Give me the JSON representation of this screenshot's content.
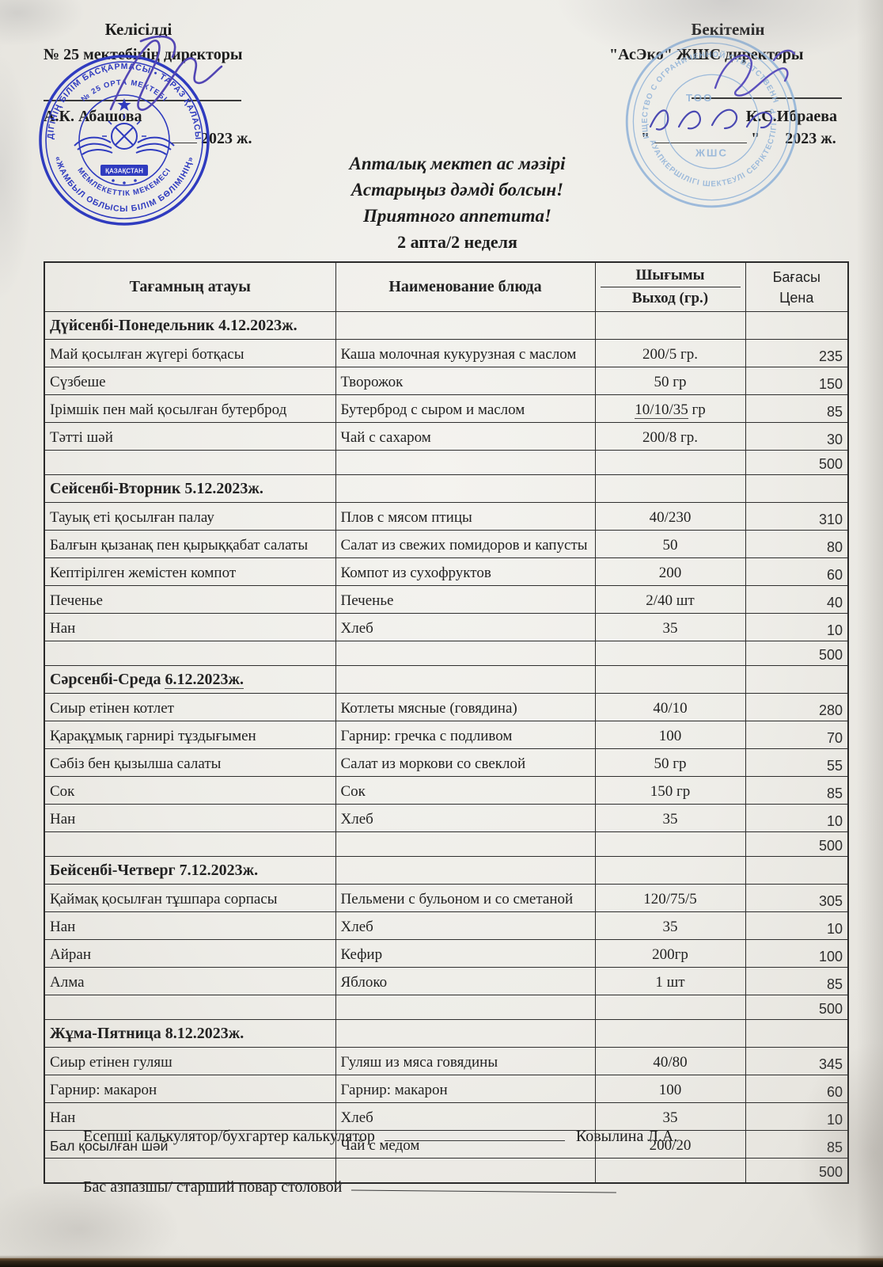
{
  "approvals": {
    "left": {
      "title": "Келісілді",
      "org": "№ 25 мектебінің директоры",
      "name": "А.К. Абашова",
      "date_suffix": "2023 ж."
    },
    "right": {
      "title": "Бекітемін",
      "org": "\"АсЭко\" ЖШС  директоры",
      "name": "К.С.Ибраева",
      "quote_open": "\"",
      "quote_close": "\"",
      "date_suffix": "2023 ж."
    }
  },
  "title_block": {
    "line1": "Апталық мектеп ас мәзірі",
    "line2": "Астарыңыз дәмді болсын!",
    "line3": "Приятного аппетита!",
    "line4": "2 апта/2 неделя"
  },
  "table": {
    "headers": {
      "col1": "Тағамның атауы",
      "col2": "Наименование блюда",
      "col3_top": "Шығымы",
      "col3_bottom": "Выход (гр.)",
      "col4_top": "Бағасы",
      "col4_bottom": "Цена"
    },
    "days": [
      {
        "title": "Дүйсенбі-Понедельник 4.12.2023ж.",
        "items": [
          {
            "kz": "Май қосылған жүгері  ботқасы",
            "ru": "Каша молочная кукурузная с маслом",
            "portion": "200/5 гр.",
            "price": "235"
          },
          {
            "kz": "Сүзбеше",
            "ru": "Творожок",
            "portion": "50 гр",
            "price": "150"
          },
          {
            "kz": "Ірімшік пен май қосылған бутерброд",
            "ru": "Бутерброд с сыром и маслом",
            "portion": "10/10/35 гр",
            "portion_underlined_part": "10/10/35",
            "price": "85"
          },
          {
            "kz": "Тәтті шәй",
            "ru": "Чай с сахаром",
            "portion": "200/8 гр.",
            "price": "30"
          }
        ],
        "total": "500"
      },
      {
        "title": "Сейсенбі-Вторник 5.12.2023ж.",
        "items": [
          {
            "kz": "Тауық еті қосылған палау",
            "ru": "Плов с мясом птицы",
            "portion": "40/230",
            "price": "310"
          },
          {
            "kz": "Балғын қызанақ пен қырыққабат салаты",
            "ru": "Салат из свежих помидоров и капусты",
            "portion": "50",
            "price": "80"
          },
          {
            "kz": "Кептірілген жемістен компот",
            "ru": "Компот из сухофруктов",
            "portion": "200",
            "price": "60"
          },
          {
            "kz": "Печенье",
            "ru": "Печенье",
            "portion": "2/40 шт",
            "price": "40"
          },
          {
            "kz": "Нан",
            "ru": "Хлеб",
            "portion": "35",
            "price": "10"
          }
        ],
        "total": "500"
      },
      {
        "title": "Сәрсенбі-Среда 6.12.2023ж.",
        "title_underlined_part": "6.12.2023ж.",
        "items": [
          {
            "kz": "Сиыр етінен котлет",
            "ru": "Котлеты мясные (говядина)",
            "portion": "40/10",
            "price": "280"
          },
          {
            "kz": "Қарақұмық гарнирі тұздығымен",
            "ru": "Гарнир: гречка с подливом",
            "portion": "100",
            "price": "70"
          },
          {
            "kz": "Сәбіз бен қызылша салаты",
            "ru": "Салат из моркови со свеклой",
            "portion": "50 гр",
            "price": "55"
          },
          {
            "kz": "Сок",
            "ru": "Сок",
            "portion": "150 гр",
            "price": "85"
          },
          {
            "kz": "Нан",
            "ru": "Хлеб",
            "portion": "35",
            "price": "10"
          }
        ],
        "total": "500"
      },
      {
        "title": "Бейсенбі-Четверг 7.12.2023ж.",
        "items": [
          {
            "kz": "Қаймақ қосылған тұшпара сорпасы",
            "ru": "Пельмени с бульоном и со сметаной",
            "portion": "120/75/5",
            "price": "305"
          },
          {
            "kz": "Нан",
            "ru": "Хлеб",
            "portion": "35",
            "price": "10"
          },
          {
            "kz": "Айран",
            "ru": "Кефир",
            "portion": "200гр",
            "price": "100"
          },
          {
            "kz": "Алма",
            "ru": "Яблоко",
            "portion": "1 шт",
            "price": "85"
          }
        ],
        "total": "500"
      },
      {
        "title": "Жұма-Пятница 8.12.2023ж.",
        "items": [
          {
            "kz": "Сиыр етінен гуляш",
            "ru": "Гуляш из мяса говядины",
            "portion": "40/80",
            "price": "345"
          },
          {
            "kz": "Гарнир: макарон",
            "ru": "Гарнир: макарон",
            "portion": "100",
            "price": "60"
          },
          {
            "kz": "Нан",
            "ru": "Хлеб",
            "portion": "35",
            "price": "10"
          },
          {
            "kz": "Бал қосылған шәй",
            "kz_sans": true,
            "ru": "Чай с  медом",
            "portion": "200/20",
            "price": "85"
          }
        ],
        "total": "500"
      }
    ]
  },
  "stamps": {
    "left": {
      "ring_top": "ӘКІМДІГІНІҢ БІЛІМ БАСҚАРМАСЫ • ТАРАЗ ҚАЛАСЫНЫҢ",
      "ring_bottom": "«ЖАМБЫЛ ОБЛЫСЫ БІЛІМ БӨЛІМІНІҢ»",
      "inner_top": "№ 25 ОРТА МЕКТЕБІ",
      "inner_bottom": "МЕМЛЕКЕТТІК МЕКЕМЕСІ",
      "banner": "ҚАЗАҚСТАН",
      "color": "#2f3bbf"
    },
    "right": {
      "ring_top": "ТОВАРИЩЕСТВО С ОГРАНИЧЕННОЙ ОТВЕТСТВЕННОСТЬЮ",
      "ring_bottom": "ЖАУАПКЕРШІЛІГІ ШЕКТЕУЛІ СЕРІКТЕСТІГІ • РК",
      "center_top": "ТОО",
      "center_bottom": "ЖШС",
      "color": "#8fb2d8"
    }
  },
  "footer": {
    "line1_label": "Есепші калькулятор/бухгартер калькулятор",
    "line1_name": "Ковылина Л.А.",
    "line2_label": "Бас азпазшы/ старший повар столовой"
  }
}
